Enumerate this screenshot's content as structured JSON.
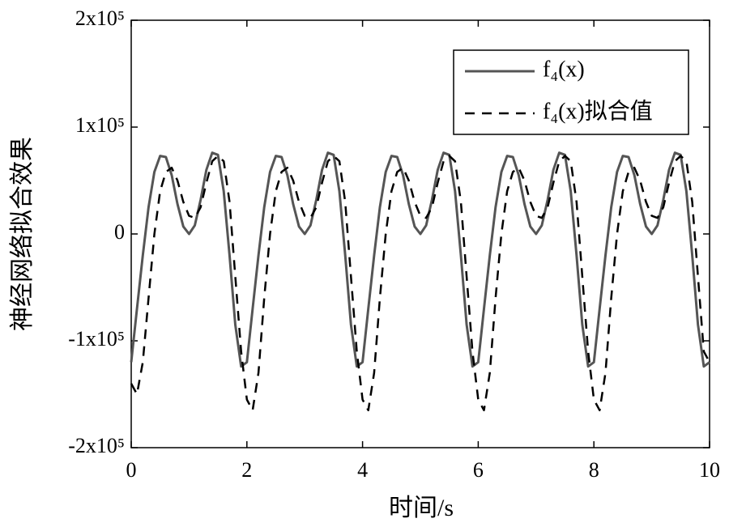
{
  "chart_data": {
    "type": "line",
    "xlabel": "时间/s",
    "ylabel": "神经网络拟合效果",
    "xlim": [
      0,
      10
    ],
    "xticks": [
      0,
      2,
      4,
      6,
      8,
      10
    ],
    "ylim": [
      -200000,
      200000
    ],
    "yticks": [
      {
        "value": -200000,
        "label": "-2x10⁵"
      },
      {
        "value": -100000,
        "label": "-1x10⁵"
      },
      0,
      {
        "value": 100000,
        "label": "1x10⁵"
      },
      {
        "value": 200000,
        "label": "2x10⁵"
      }
    ],
    "legend": "upper right",
    "x": [
      0,
      0.1,
      0.2,
      0.3,
      0.4,
      0.5,
      0.6,
      0.7,
      0.8,
      0.9,
      1,
      1.1,
      1.2,
      1.3,
      1.4,
      1.5,
      1.6,
      1.7,
      1.8,
      1.9,
      2,
      2.1,
      2.2,
      2.3,
      2.4,
      2.5,
      2.6,
      2.7,
      2.8,
      2.9,
      3,
      3.1,
      3.2,
      3.3,
      3.4,
      3.5,
      3.6,
      3.7,
      3.8,
      3.9,
      4,
      4.1,
      4.2,
      4.3,
      4.4,
      4.5,
      4.6,
      4.7,
      4.8,
      4.9,
      5,
      5.1,
      5.2,
      5.3,
      5.4,
      5.5,
      5.6,
      5.7,
      5.8,
      5.9,
      6,
      6.1,
      6.2,
      6.3,
      6.4,
      6.5,
      6.6,
      6.7,
      6.8,
      6.9,
      7,
      7.1,
      7.2,
      7.3,
      7.4,
      7.5,
      7.6,
      7.7,
      7.8,
      7.9,
      8,
      8.1,
      8.2,
      8.3,
      8.4,
      8.5,
      8.6,
      8.7,
      8.8,
      8.9,
      9,
      9.1,
      9.2,
      9.3,
      9.4,
      9.5,
      9.6,
      9.7,
      9.8,
      9.9,
      10
    ],
    "series": [
      {
        "name": "f₄(x)",
        "color": "#555555",
        "dash": false,
        "values": [
          -120000,
          -70000,
          -20000,
          25000,
          58000,
          73000,
          72000,
          55000,
          28000,
          7000,
          0,
          8000,
          32000,
          60000,
          76000,
          74000,
          40000,
          -20000,
          -85000,
          -124000,
          -120000,
          -70000,
          -20000,
          25000,
          58000,
          73000,
          72000,
          55000,
          28000,
          7000,
          0,
          8000,
          32000,
          60000,
          76000,
          74000,
          40000,
          -20000,
          -85000,
          -124000,
          -120000,
          -70000,
          -20000,
          25000,
          58000,
          73000,
          72000,
          55000,
          28000,
          7000,
          0,
          8000,
          32000,
          60000,
          76000,
          74000,
          40000,
          -20000,
          -85000,
          -124000,
          -120000,
          -70000,
          -20000,
          25000,
          58000,
          73000,
          72000,
          55000,
          28000,
          7000,
          0,
          8000,
          32000,
          60000,
          76000,
          74000,
          40000,
          -20000,
          -85000,
          -124000,
          -120000,
          -70000,
          -20000,
          25000,
          58000,
          73000,
          72000,
          55000,
          28000,
          7000,
          0,
          8000,
          32000,
          60000,
          76000,
          74000,
          40000,
          -20000,
          -85000,
          -124000,
          -120000
        ]
      },
      {
        "name": "f₄(x)拟合值",
        "color": "#000000",
        "dash": true,
        "values": [
          -140000,
          -150000,
          -120000,
          -60000,
          0,
          40000,
          58000,
          62000,
          50000,
          30000,
          17000,
          15000,
          25000,
          48000,
          68000,
          73000,
          68000,
          30000,
          -40000,
          -110000,
          -155000,
          -165000,
          -130000,
          -60000,
          0,
          40000,
          58000,
          62000,
          50000,
          30000,
          17000,
          15000,
          25000,
          48000,
          68000,
          73000,
          68000,
          30000,
          -40000,
          -110000,
          -155000,
          -165000,
          -130000,
          -60000,
          0,
          40000,
          58000,
          62000,
          50000,
          30000,
          17000,
          15000,
          25000,
          48000,
          68000,
          73000,
          68000,
          30000,
          -40000,
          -110000,
          -155000,
          -165000,
          -130000,
          -60000,
          0,
          40000,
          58000,
          62000,
          50000,
          30000,
          17000,
          15000,
          25000,
          48000,
          68000,
          73000,
          68000,
          30000,
          -40000,
          -110000,
          -155000,
          -165000,
          -130000,
          -60000,
          0,
          40000,
          58000,
          62000,
          50000,
          30000,
          17000,
          15000,
          25000,
          48000,
          68000,
          73000,
          68000,
          30000,
          -40000,
          -110000,
          -120000
        ]
      }
    ]
  }
}
